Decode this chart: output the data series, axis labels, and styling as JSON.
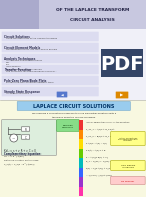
{
  "page_bg": "#e8e8e8",
  "title_bg": "#c8c8e0",
  "title_text_color": "#222244",
  "title_line1": "OF THE LAPLACE TRANSFORM",
  "title_line2": "CIRCUIT ANALYSIS",
  "diagonal_bg": "#aaaacc",
  "bullet_area_bg": "#f0f0f8",
  "bullet_items": [
    [
      "Circuit Solutions",
      "Using the usefulness of the Laplace transform"
    ],
    [
      "Circuit Element Models",
      "Transforming circuits into the Laplace domain"
    ],
    [
      "Analysis Techniques",
      "All standard analysis techniques, KVL, KCL, loop analysis, Thevenin's theorem are applied"
    ],
    [
      "Transfer Function",
      "The concept is revisited and given a formal..."
    ],
    [
      "Pole-Zero Plane/Bode Plots",
      "Establishing the connection between them"
    ],
    [
      "Steady State Response",
      "All analysis revisited"
    ]
  ],
  "bold_color": "#333355",
  "sub_color": "#444444",
  "pdf_color": "#223355",
  "pdf_bg": "#334466",
  "nav_blue_bg": "#5577cc",
  "nav_orange_bg": "#dd8800",
  "section2_bg": "#f8f8e0",
  "section2_title_bg": "#99ccee",
  "section2_title_color": "#003366",
  "section2_title": "LAPLACE CIRCUIT SOLUTIONS",
  "section2_desc_color": "#222222",
  "circuit_box_bg": "#ddeedd",
  "circuit_box_border": "#888888",
  "complex_box_bg": "#88dd88",
  "complex_box_border": "#44aa44",
  "right_eq_color": "#222222",
  "initial_box_bg": "#ffff88",
  "initial_box_border": "#aaaa00",
  "algebra_box_bg": "#ffff88",
  "no_need_box_bg": "#ffcccc",
  "no_need_box_border": "#cc8888",
  "colorbar_colors": [
    "#ee3333",
    "#ff8800",
    "#ffdd00",
    "#66cc00",
    "#00bbbb",
    "#3366ff",
    "#9933cc",
    "#ff33aa"
  ],
  "sep_line_color": "#aaaaaa"
}
